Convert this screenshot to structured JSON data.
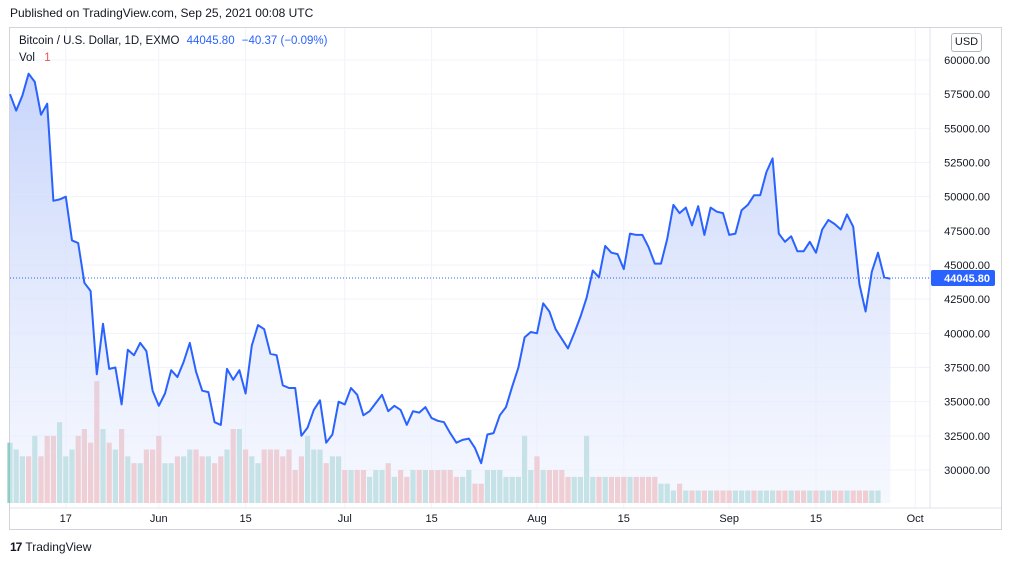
{
  "header": {
    "published": "Published on TradingView.com, Sep 25, 2021 00:08 UTC"
  },
  "legend": {
    "symbol": "Bitcoin / U.S. Dollar, 1D, EXMO",
    "price": "44045.80",
    "change": "−40.37 (−0.09%)",
    "vol_label": "Vol",
    "vol_value": "1"
  },
  "currency_button": "USD",
  "footer": {
    "brand": "TradingView",
    "logo_text": "17"
  },
  "colors": {
    "line": "#2962ff",
    "area_top": "#c9d6fb",
    "vol_up": "#7fc7bd",
    "vol_down": "#f0928e",
    "price_label_bg": "#2962ff"
  },
  "chart_data": {
    "type": "line",
    "title": "Bitcoin / U.S. Dollar, 1D, EXMO",
    "xlabel": "",
    "ylabel": "",
    "ylim": [
      27500,
      60500
    ],
    "yticks": [
      "60000.00",
      "57500.00",
      "55000.00",
      "52500.00",
      "50000.00",
      "47500.00",
      "45000.00",
      "42500.00",
      "40000.00",
      "37500.00",
      "35000.00",
      "32500.00",
      "30000.00"
    ],
    "ytick_values": [
      60000,
      57500,
      55000,
      52500,
      50000,
      47500,
      45000,
      42500,
      40000,
      37500,
      35000,
      32500,
      30000
    ],
    "xticks": [
      {
        "label": "17",
        "index": 9
      },
      {
        "label": "Jun",
        "index": 24
      },
      {
        "label": "15",
        "index": 38
      },
      {
        "label": "Jul",
        "index": 54
      },
      {
        "label": "15",
        "index": 68
      },
      {
        "label": "Aug",
        "index": 85
      },
      {
        "label": "15",
        "index": 99
      },
      {
        "label": "Sep",
        "index": 116
      },
      {
        "label": "15",
        "index": 130
      },
      {
        "label": "Oct",
        "index": 146
      }
    ],
    "last_price": 44045.8,
    "last_price_label": "44045.80",
    "series": [
      {
        "values": [
          57500,
          56300,
          57400,
          59000,
          58400,
          56000,
          56800,
          49700,
          49800,
          50000,
          46800,
          46600,
          43700,
          43100,
          37000,
          40700,
          37400,
          37500,
          34800,
          38800,
          38400,
          39300,
          38700,
          35800,
          34700,
          35600,
          37300,
          36800,
          37900,
          39300,
          37200,
          35800,
          35700,
          33500,
          33300,
          37400,
          36600,
          37300,
          35600,
          39100,
          40600,
          40300,
          38500,
          38400,
          36200,
          36000,
          36000,
          32500,
          33100,
          34400,
          35100,
          32000,
          32600,
          35000,
          34800,
          36000,
          35500,
          34000,
          34300,
          34900,
          35500,
          34300,
          34700,
          34400,
          33300,
          34300,
          34200,
          34600,
          33800,
          33600,
          33500,
          32700,
          32000,
          32200,
          32300,
          31600,
          30500,
          32600,
          32700,
          34000,
          34600,
          36100,
          37500,
          39700,
          40100,
          40000,
          42200,
          41600,
          40300,
          39600,
          38900,
          40000,
          41200,
          42600,
          44600,
          44100,
          46400,
          45900,
          45800,
          44700,
          47300,
          47200,
          47200,
          46300,
          45100,
          45100,
          46900,
          49400,
          48800,
          49200,
          47900,
          49300,
          47200,
          49200,
          48900,
          48800,
          47200,
          47300,
          49000,
          49400,
          50100,
          50100,
          51800,
          52800,
          47300,
          46700,
          47100,
          46000,
          46000,
          46700,
          45900,
          47600,
          48300,
          48000,
          47600,
          48700,
          47800,
          43600,
          41600,
          44500,
          45900,
          44100,
          44000
        ]
      }
    ],
    "volume": {
      "values": [
        32,
        31.5,
        31,
        31,
        32.5,
        31,
        32.5,
        32.5,
        33.5,
        31,
        31.5,
        32.5,
        33,
        32,
        36.5,
        33,
        32,
        31.5,
        33,
        31,
        30.5,
        30.5,
        31.5,
        31.5,
        32.5,
        30.5,
        30.5,
        31,
        31,
        31.5,
        31.5,
        31,
        31,
        30.5,
        31,
        31.5,
        33,
        33,
        31.5,
        31,
        30.5,
        31.5,
        31.5,
        31.5,
        31,
        31.5,
        30,
        31,
        32.5,
        31.5,
        31.5,
        30.5,
        31,
        31,
        30,
        30,
        30,
        30,
        29.5,
        30,
        30,
        30.5,
        29.5,
        30,
        29.5,
        30,
        30,
        30,
        30,
        30,
        30,
        30,
        29.5,
        29.5,
        30,
        29,
        29,
        30,
        30,
        30,
        29.5,
        29.5,
        29.5,
        32.5,
        30,
        31,
        30,
        30,
        30,
        30,
        29.5,
        29.5,
        29.5,
        32.5,
        29.5,
        29.5,
        29.5,
        29.5,
        29.5,
        29.5,
        29.5,
        29.5,
        29.5,
        29.5,
        29.5,
        29,
        29,
        28.5,
        29,
        28.5,
        28.5,
        28.5,
        28.5,
        28.5,
        28.5,
        28.5,
        28.5,
        28.5,
        28.5,
        28.5,
        28.5,
        28.5,
        28.5,
        28.5,
        28.5,
        28.5,
        28.5,
        28.5,
        28.5,
        28.5,
        28.5,
        28.5,
        28.5,
        28.5,
        28.5,
        28.5,
        28.5,
        28.5,
        28.5,
        28.5,
        28.5
      ],
      "up": [
        true,
        true,
        true,
        false,
        true,
        false,
        false,
        false,
        true,
        true,
        true,
        false,
        false,
        false,
        false,
        true,
        false,
        true,
        false,
        true,
        false,
        true,
        false,
        false,
        false,
        true,
        true,
        false,
        true,
        true,
        false,
        false,
        true,
        false,
        false,
        true,
        false,
        true,
        false,
        true,
        true,
        false,
        false,
        false,
        false,
        false,
        false,
        false,
        true,
        true,
        true,
        false,
        true,
        true,
        false,
        true,
        false,
        false,
        true,
        true,
        true,
        false,
        true,
        false,
        false,
        true,
        false,
        true,
        false,
        false,
        false,
        false,
        false,
        true,
        true,
        false,
        false,
        true,
        true,
        true,
        true,
        true,
        true,
        true,
        true,
        false,
        true,
        false,
        false,
        false,
        false,
        true,
        true,
        true,
        true,
        false,
        true,
        false,
        false,
        false,
        true,
        false,
        false,
        false,
        false,
        true,
        true,
        true,
        false,
        true,
        false,
        true,
        false,
        true,
        false,
        false,
        false,
        true,
        true,
        true,
        false,
        true,
        true,
        true,
        false,
        false,
        true,
        false,
        false,
        true,
        false,
        true,
        true,
        false,
        false,
        true,
        false,
        false,
        false,
        true,
        true,
        false,
        false
      ]
    }
  }
}
